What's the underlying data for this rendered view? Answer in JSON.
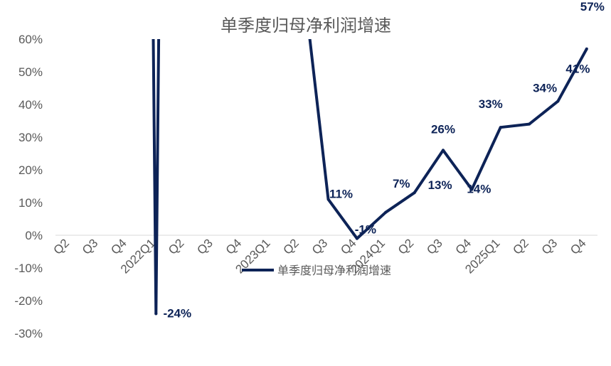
{
  "chart_data": {
    "type": "line",
    "title": "单季度归母净利润增速",
    "xlabel": "",
    "ylabel": "",
    "ylim": [
      -0.3,
      0.6
    ],
    "yticks": [
      "60%",
      "50%",
      "40%",
      "30%",
      "20%",
      "10%",
      "0%",
      "-10%",
      "-20%",
      "-30%"
    ],
    "categories": [
      "Q2",
      "Q3",
      "Q4",
      "2022Q1",
      "Q2",
      "Q3",
      "Q4",
      "2023Q1",
      "Q2",
      "Q3",
      "Q4",
      "2024Q1",
      "Q2",
      "Q3",
      "Q4",
      "2025Q1",
      "Q2",
      "Q3",
      "Q4"
    ],
    "grid": false,
    "legend_position": "bottom-center",
    "colors": {
      "line": "#0d2357",
      "axis": "#d9d9d9",
      "text": "#595959"
    },
    "series": [
      {
        "name": "单季度归母净利润增速",
        "values": [
          null,
          null,
          null,
          -0.24,
          null,
          null,
          null,
          null,
          null,
          0.11,
          -0.01,
          0.07,
          0.13,
          0.26,
          0.14,
          0.33,
          0.34,
          0.41,
          0.57
        ],
        "labels": [
          "",
          "",
          "",
          "-24%",
          "",
          "",
          "",
          "",
          "",
          "11%",
          "-1%",
          "7%",
          "13%",
          "26%",
          "14%",
          "33%",
          "34%",
          "41%",
          "57%"
        ]
      }
    ]
  }
}
